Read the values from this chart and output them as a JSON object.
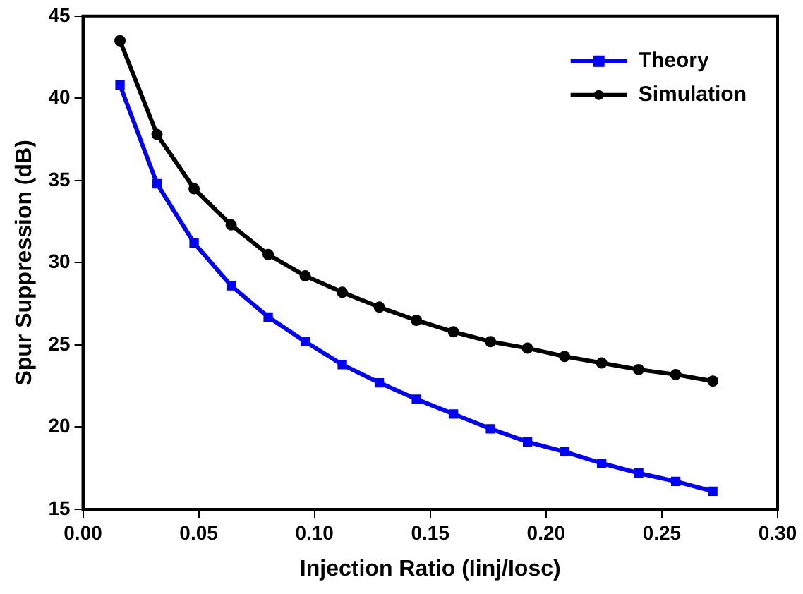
{
  "chart_data": {
    "type": "line",
    "xlabel": "Injection Ratio (Iinj/Iosc)",
    "ylabel": "Spur Suppression (dB)",
    "x": [
      0.016,
      0.032,
      0.048,
      0.064,
      0.08,
      0.096,
      0.112,
      0.128,
      0.144,
      0.16,
      0.176,
      0.192,
      0.208,
      0.224,
      0.24,
      0.256,
      0.272
    ],
    "series": [
      {
        "name": "Theory",
        "color": "#0000ff",
        "marker": "square",
        "values": [
          40.8,
          34.8,
          31.2,
          28.6,
          26.7,
          25.2,
          23.8,
          22.7,
          21.7,
          20.8,
          19.9,
          19.1,
          18.5,
          17.8,
          17.2,
          16.7,
          16.1
        ]
      },
      {
        "name": "Simulation",
        "color": "#000000",
        "marker": "circle",
        "values": [
          43.5,
          37.8,
          34.5,
          32.3,
          30.5,
          29.2,
          28.2,
          27.3,
          26.5,
          25.8,
          25.2,
          24.8,
          24.3,
          23.9,
          23.5,
          23.2,
          22.8
        ]
      }
    ],
    "xlim": [
      0,
      0.3
    ],
    "xticks": [
      {
        "value": 0,
        "label": "0.00"
      },
      {
        "value": 0.05,
        "label": "0.05"
      },
      {
        "value": 0.1,
        "label": "0.10"
      },
      {
        "value": 0.15,
        "label": "0.15"
      },
      {
        "value": 0.2,
        "label": "0.20"
      },
      {
        "value": 0.25,
        "label": "0.25"
      },
      {
        "value": 0.3,
        "label": "0.30"
      }
    ],
    "ylim": [
      15,
      45
    ],
    "yticks": [
      15,
      20,
      25,
      30,
      35,
      40,
      45
    ],
    "grid": false,
    "legend": "top right",
    "line_style": "solid"
  }
}
